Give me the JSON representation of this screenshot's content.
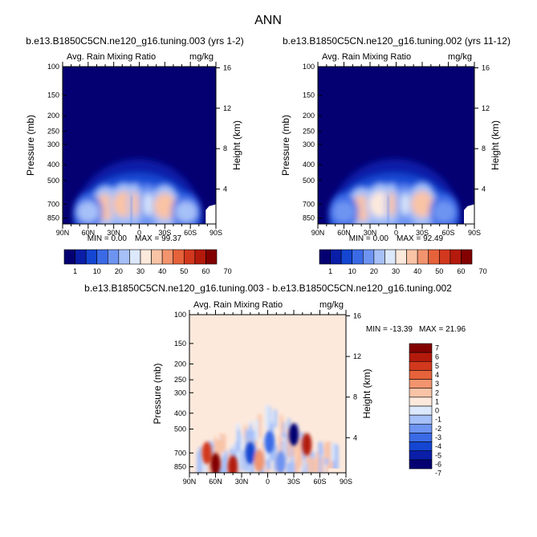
{
  "title": "ANN",
  "panels": [
    {
      "case_title": "b.e13.B1850C5CN.ne120_g16.tuning.003 (yrs 1-2)",
      "var_label": "Avg. Rain Mixing Ratio",
      "units": "mg/kg",
      "stats": {
        "min": "MIN =    0.00",
        "max": "MAX =   99.37"
      }
    },
    {
      "case_title": "b.e13.B1850C5CN.ne120_g16.tuning.002 (yrs 11-12)",
      "var_label": "Avg. Rain Mixing Ratio",
      "units": "mg/kg",
      "stats": {
        "min": "MIN =    0.00",
        "max": "MAX =   92.49"
      }
    },
    {
      "case_title": "b.e13.B1850C5CN.ne120_g16.tuning.003 - b.e13.B1850C5CN.ne120_g16.tuning.002",
      "var_label": "Avg. Rain Mixing Ratio",
      "units": "mg/kg",
      "stats": {
        "min": "MIN =  -13.39",
        "max": "MAX =   21.96"
      }
    }
  ],
  "axes": {
    "ylabel_left": "Pressure (mb)",
    "ylabel_right": "Height (km)",
    "pressure_ticks": [
      "100",
      "150",
      "200",
      "250",
      "300",
      "400",
      "500",
      "700",
      "850"
    ],
    "height_ticks": [
      "16",
      "12",
      "8",
      "4"
    ],
    "lat_ticks": [
      "90N",
      "60N",
      "30N",
      "0",
      "30S",
      "60S",
      "90S"
    ]
  },
  "colorbar_abs": {
    "labels": [
      "1",
      "10",
      "20",
      "30",
      "40",
      "50",
      "60",
      "70"
    ],
    "colors": [
      "#040072",
      "#0a1ea8",
      "#1446d2",
      "#3a6ae6",
      "#6e94f2",
      "#a6c0f8",
      "#dce8fb",
      "#fde9dc",
      "#f9c3a6",
      "#f2946e",
      "#e6623a",
      "#d2381e",
      "#b41a0c",
      "#820000"
    ]
  },
  "colorbar_diff": {
    "labels": [
      "7",
      "6",
      "5",
      "4",
      "3",
      "2",
      "1",
      "0",
      "-1",
      "-2",
      "-3",
      "-4",
      "-5",
      "-6",
      "-7"
    ],
    "colors": [
      "#820000",
      "#b41a0c",
      "#d2381e",
      "#e6623a",
      "#f2946e",
      "#f9c3a6",
      "#fde9dc",
      "#dce8fb",
      "#a6c0f8",
      "#6e94f2",
      "#3a6ae6",
      "#1446d2",
      "#0a1ea8",
      "#040072"
    ]
  },
  "chart_data": [
    {
      "type": "heatmap",
      "title": "b.e13.B1850C5CN.ne120_g16.tuning.003 (yrs 1-2)",
      "variable": "Avg. Rain Mixing Ratio",
      "units": "mg/kg",
      "xlabel": "",
      "ylabel": "Pressure (mb)",
      "ylabel_right": "Height (km)",
      "x_ticks": [
        "90N",
        "60N",
        "30N",
        "0",
        "30S",
        "60S",
        "90S"
      ],
      "y_ticks": [
        100,
        150,
        200,
        250,
        300,
        400,
        500,
        700,
        850
      ],
      "ylim": [
        100,
        925
      ],
      "min": 0.0,
      "max": 99.37,
      "levels": [
        1,
        10,
        20,
        30,
        40,
        50,
        60,
        70
      ],
      "features": [
        {
          "lat": 40,
          "p": 730,
          "value": 75
        },
        {
          "lat": 18,
          "p": 700,
          "value": 70
        },
        {
          "lat": 5,
          "p": 700,
          "value": 72
        },
        {
          "lat": -10,
          "p": 700,
          "value": 55
        },
        {
          "lat": -30,
          "p": 720,
          "value": 75
        },
        {
          "lat": 60,
          "p": 780,
          "value": 40
        },
        {
          "lat": -55,
          "p": 780,
          "value": 40
        }
      ]
    },
    {
      "type": "heatmap",
      "title": "b.e13.B1850C5CN.ne120_g16.tuning.002 (yrs 11-12)",
      "variable": "Avg. Rain Mixing Ratio",
      "units": "mg/kg",
      "xlabel": "",
      "ylabel": "Pressure (mb)",
      "ylabel_right": "Height (km)",
      "x_ticks": [
        "90N",
        "60N",
        "30N",
        "0",
        "30S",
        "60S",
        "90S"
      ],
      "y_ticks": [
        100,
        150,
        200,
        250,
        300,
        400,
        500,
        700,
        850
      ],
      "ylim": [
        100,
        925
      ],
      "min": 0.0,
      "max": 92.49,
      "levels": [
        1,
        10,
        20,
        30,
        40,
        50,
        60,
        70
      ],
      "features": [
        {
          "lat": 40,
          "p": 740,
          "value": 70
        },
        {
          "lat": 18,
          "p": 700,
          "value": 68
        },
        {
          "lat": 5,
          "p": 700,
          "value": 70
        },
        {
          "lat": -10,
          "p": 700,
          "value": 50
        },
        {
          "lat": -30,
          "p": 700,
          "value": 75
        },
        {
          "lat": 60,
          "p": 780,
          "value": 38
        },
        {
          "lat": -55,
          "p": 780,
          "value": 38
        }
      ]
    },
    {
      "type": "heatmap",
      "title": "b.e13.B1850C5CN.ne120_g16.tuning.003 - b.e13.B1850C5CN.ne120_g16.tuning.002",
      "variable": "Avg. Rain Mixing Ratio",
      "units": "mg/kg",
      "xlabel": "",
      "ylabel": "Pressure (mb)",
      "ylabel_right": "Height (km)",
      "x_ticks": [
        "90N",
        "60N",
        "30N",
        "0",
        "30S",
        "60S",
        "90S"
      ],
      "y_ticks": [
        100,
        150,
        200,
        250,
        300,
        400,
        500,
        700,
        850
      ],
      "ylim": [
        100,
        925
      ],
      "min": -13.39,
      "max": 21.96,
      "levels": [
        -7,
        -6,
        -5,
        -4,
        -3,
        -2,
        -1,
        0,
        1,
        2,
        3,
        4,
        5,
        6,
        7
      ],
      "features": [
        {
          "lat": 60,
          "p": 820,
          "value": 7
        },
        {
          "lat": 40,
          "p": 850,
          "value": 6
        },
        {
          "lat": 70,
          "p": 700,
          "value": 5
        },
        {
          "lat": 20,
          "p": 700,
          "value": -5
        },
        {
          "lat": -2,
          "p": 600,
          "value": -4
        },
        {
          "lat": -30,
          "p": 540,
          "value": -7
        },
        {
          "lat": -45,
          "p": 620,
          "value": 6
        },
        {
          "lat": -15,
          "p": 800,
          "value": -3
        },
        {
          "lat": 10,
          "p": 780,
          "value": 3
        }
      ]
    }
  ]
}
